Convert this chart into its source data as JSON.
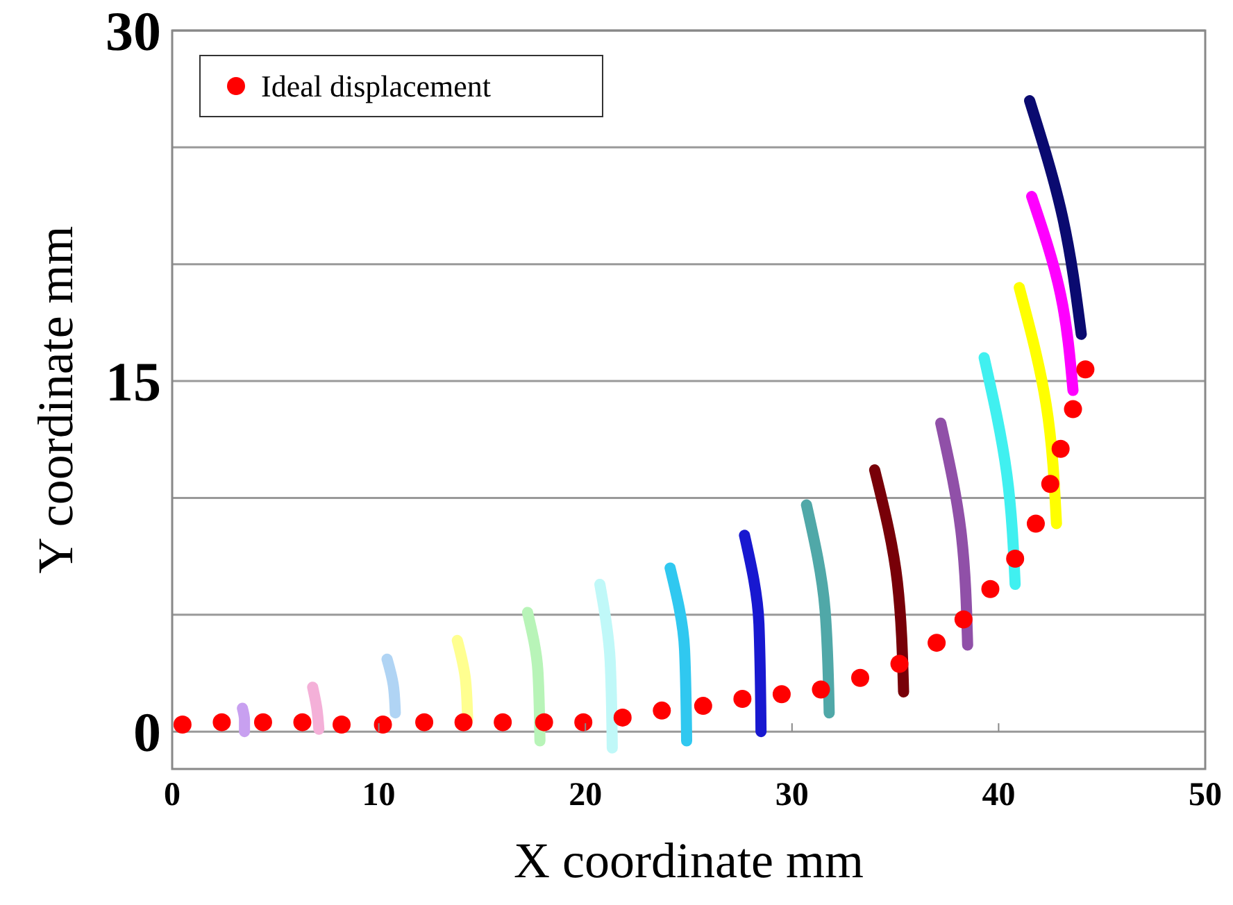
{
  "chart_data": {
    "type": "scatter",
    "xlabel": "X coordinate mm",
    "ylabel": "Y coordinate mm",
    "xlim": [
      0,
      50
    ],
    "ylim": [
      -1.6,
      30
    ],
    "xticks": [
      0,
      10,
      20,
      30,
      40,
      50
    ],
    "yticks": [
      0,
      {
        "value": 5,
        "label": null
      },
      {
        "value": 10,
        "label": null
      },
      15,
      {
        "value": 20,
        "label": null
      },
      {
        "value": 25,
        "label": null
      },
      30
    ],
    "grid": "y",
    "legend": "top left",
    "series": [
      {
        "type": "line",
        "color": "#c8a0f0",
        "x": [
          3.4,
          3.5,
          3.5
        ],
        "values": [
          1.0,
          0.5,
          0.0
        ]
      },
      {
        "type": "line",
        "color": "#f4b0d8",
        "x": [
          6.8,
          7.0,
          7.1
        ],
        "values": [
          1.9,
          1.0,
          0.1
        ]
      },
      {
        "type": "line",
        "color": "#b0d4f4",
        "x": [
          10.4,
          10.7,
          10.8
        ],
        "values": [
          3.1,
          2.0,
          0.8
        ]
      },
      {
        "type": "line",
        "color": "#ffff90",
        "x": [
          13.8,
          14.2,
          14.3
        ],
        "values": [
          3.9,
          2.2,
          0.5
        ]
      },
      {
        "type": "line",
        "color": "#b8f4b8",
        "x": [
          17.2,
          17.7,
          17.8
        ],
        "values": [
          5.1,
          2.6,
          -0.4
        ]
      },
      {
        "type": "line",
        "color": "#c0f8f8",
        "x": [
          20.7,
          21.2,
          21.3
        ],
        "values": [
          6.3,
          3.0,
          -0.7
        ]
      },
      {
        "type": "line",
        "color": "#30c8f0",
        "x": [
          24.1,
          24.8,
          24.9
        ],
        "values": [
          7.0,
          3.5,
          -0.4
        ]
      },
      {
        "type": "line",
        "color": "#1818d0",
        "x": [
          27.7,
          28.4,
          28.5
        ],
        "values": [
          8.4,
          4.6,
          0.0
        ]
      },
      {
        "type": "line",
        "color": "#50a8a8",
        "x": [
          30.7,
          31.6,
          31.8
        ],
        "values": [
          9.7,
          5.2,
          0.8
        ]
      },
      {
        "type": "line",
        "color": "#780008",
        "x": [
          34.0,
          35.1,
          35.4
        ],
        "values": [
          11.2,
          6.4,
          1.7
        ]
      },
      {
        "type": "line",
        "color": "#9050a8",
        "x": [
          37.2,
          38.2,
          38.5
        ],
        "values": [
          13.2,
          8.4,
          3.7
        ]
      },
      {
        "type": "line",
        "color": "#40f0f0",
        "x": [
          39.3,
          40.4,
          40.8
        ],
        "values": [
          16.0,
          11.0,
          6.3
        ]
      },
      {
        "type": "line",
        "color": "#ffff00",
        "x": [
          41.0,
          42.3,
          42.8
        ],
        "values": [
          19.0,
          14.0,
          8.9
        ]
      },
      {
        "type": "line",
        "color": "#ff00ff",
        "x": [
          41.6,
          43.0,
          43.6
        ],
        "values": [
          22.9,
          18.7,
          14.6
        ]
      },
      {
        "type": "line",
        "color": "#0a0a70",
        "x": [
          41.5,
          43.1,
          44.0
        ],
        "values": [
          27.0,
          22.0,
          17.0
        ]
      },
      {
        "name": "Ideal displacement",
        "color": "#ff0000",
        "x": [
          0.5,
          2.4,
          4.4,
          6.3,
          8.2,
          10.2,
          12.2,
          14.1,
          16.0,
          18.0,
          19.9,
          21.8,
          23.7,
          25.7,
          27.6,
          29.5,
          31.4,
          33.3,
          35.2,
          37.0,
          38.3,
          39.6,
          40.8,
          41.8,
          42.5,
          43.0,
          43.6,
          44.2
        ],
        "values": [
          0.3,
          0.4,
          0.4,
          0.4,
          0.3,
          0.3,
          0.4,
          0.4,
          0.4,
          0.4,
          0.4,
          0.6,
          0.9,
          1.1,
          1.4,
          1.6,
          1.8,
          2.3,
          2.9,
          3.8,
          4.8,
          6.1,
          7.4,
          8.9,
          10.6,
          12.1,
          13.8,
          15.5
        ]
      }
    ]
  }
}
